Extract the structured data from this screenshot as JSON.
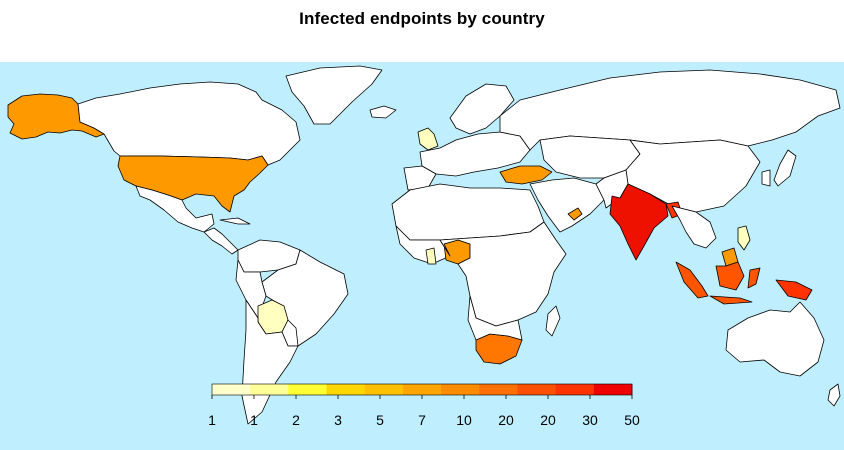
{
  "title": "Infected endpoints by country",
  "colors": {
    "ocean": "#bfefff",
    "no_data": "#ffffff",
    "border": "#000000"
  },
  "legend": {
    "ticks": [
      "1",
      "1",
      "2",
      "3",
      "5",
      "7",
      "10",
      "20",
      "20",
      "30",
      "50"
    ],
    "colors": [
      "#ffffcc",
      "#ffff99",
      "#ffff33",
      "#ffd700",
      "#ffc000",
      "#ffa500",
      "#ff8c00",
      "#ff7000",
      "#ff5000",
      "#ff3300",
      "#ee0000"
    ]
  },
  "chart_data": {
    "type": "choropleth",
    "title": "Infected endpoints by country",
    "scale_breaks": [
      1,
      1,
      2,
      3,
      5,
      7,
      10,
      20,
      20,
      30,
      50
    ],
    "highlighted_countries": [
      {
        "country": "United States",
        "level": "7",
        "color": "#ff9900"
      },
      {
        "country": "Alaska (USA)",
        "level": "7",
        "color": "#ff9900"
      },
      {
        "country": "United Kingdom",
        "level": "1",
        "color": "#ffffc0"
      },
      {
        "country": "Bolivia",
        "level": "1",
        "color": "#ffffc0"
      },
      {
        "country": "Ghana",
        "level": "1",
        "color": "#ffffc0"
      },
      {
        "country": "Philippines",
        "level": "1",
        "color": "#ffffc0"
      },
      {
        "country": "Nigeria",
        "level": "7",
        "color": "#ff9900"
      },
      {
        "country": "Turkey",
        "level": "7",
        "color": "#ff9900"
      },
      {
        "country": "United Arab Emirates",
        "level": "7",
        "color": "#ff9900"
      },
      {
        "country": "Malaysia",
        "level": "7",
        "color": "#ff9900"
      },
      {
        "country": "South Africa",
        "level": "10",
        "color": "#ff7700"
      },
      {
        "country": "Indonesia",
        "level": "20",
        "color": "#ff5500"
      },
      {
        "country": "India",
        "level": "50",
        "color": "#ee1100"
      },
      {
        "country": "Bangladesh",
        "level": "30",
        "color": "#ff3300"
      },
      {
        "country": "Papua New Guinea",
        "level": "30",
        "color": "#ff3300"
      }
    ]
  }
}
